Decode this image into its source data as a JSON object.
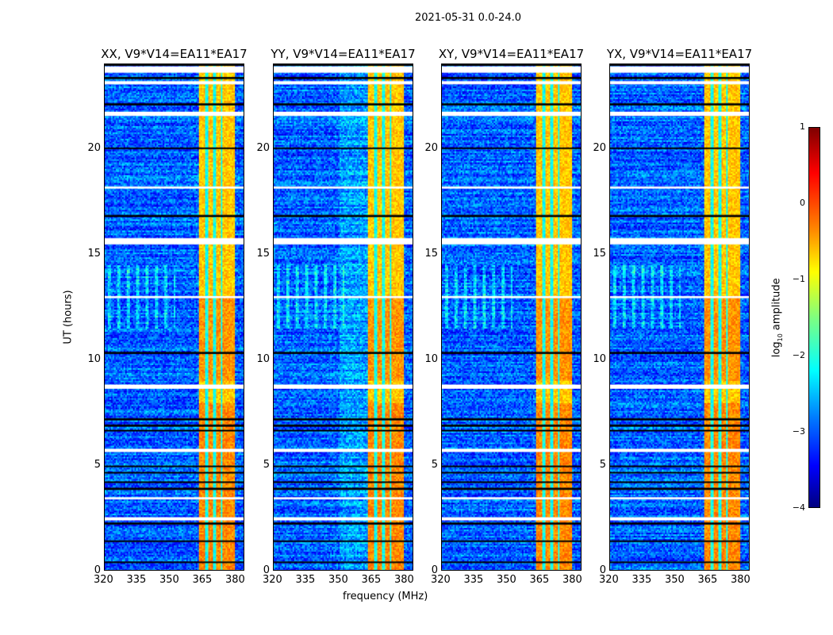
{
  "suptitle": "2021-05-31 0.0-24.0",
  "chart_data": {
    "type": "heatmap",
    "title": "2021-05-31 0.0-24.0",
    "xlabel": "frequency (MHz)",
    "ylabel": "UT (hours)",
    "panels": [
      {
        "title": "XX, V9*V14=EA11*EA17"
      },
      {
        "title": "YY, V9*V14=EA11*EA17"
      },
      {
        "title": "XY, V9*V14=EA11*EA17"
      },
      {
        "title": "YX, V9*V14=EA11*EA17"
      }
    ],
    "xlim": [
      320,
      384
    ],
    "ylim": [
      0,
      24
    ],
    "xticks": [
      "320",
      "335",
      "350",
      "365",
      "380"
    ],
    "xtick_values": [
      320,
      335,
      350,
      365,
      380
    ],
    "yticks": [
      "0",
      "5",
      "10",
      "15",
      "20"
    ],
    "ytick_values": [
      0,
      5,
      10,
      15,
      20
    ],
    "colorbar": {
      "label": "log10 amplitude",
      "label_main": "log",
      "label_sub": "10",
      "label_rest": " amplitude",
      "range": [
        -4,
        1
      ],
      "ticks": [
        "1",
        "0",
        "−1",
        "−2",
        "−3",
        "−4"
      ],
      "tick_values": [
        1,
        0,
        -1,
        -2,
        -3,
        -4
      ],
      "colormap": "jet"
    },
    "background_level": -2.9,
    "rfi_band_MHz": [
      363,
      380
    ],
    "rfi_band_level": -0.6,
    "rfi_gaps_MHz": [
      366.5,
      370,
      373.5
    ],
    "flagged_white_UT": [
      [
        23.6,
        23.9
      ],
      [
        23.05,
        23.2
      ],
      [
        21.55,
        21.75
      ],
      [
        15.45,
        15.75
      ],
      [
        8.6,
        8.8
      ],
      [
        5.6,
        5.75
      ],
      [
        2.35,
        2.5
      ],
      [
        3.35,
        3.45
      ],
      [
        12.9,
        13.0
      ],
      [
        18.1,
        18.2
      ]
    ],
    "flagged_black_UT": [
      [
        23.95,
        24
      ],
      [
        23.3,
        23.4
      ],
      [
        22.05,
        22.15
      ],
      [
        20.0,
        20.05
      ],
      [
        16.75,
        16.85
      ],
      [
        10.25,
        10.35
      ],
      [
        7.1,
        7.2
      ],
      [
        6.8,
        6.9
      ],
      [
        6.6,
        6.65
      ],
      [
        4.9,
        4.95
      ],
      [
        4.6,
        4.65
      ],
      [
        4.15,
        4.2
      ],
      [
        3.8,
        3.9
      ],
      [
        2.15,
        2.25
      ],
      [
        1.35,
        1.4
      ],
      [
        0.35,
        0.4
      ]
    ]
  }
}
